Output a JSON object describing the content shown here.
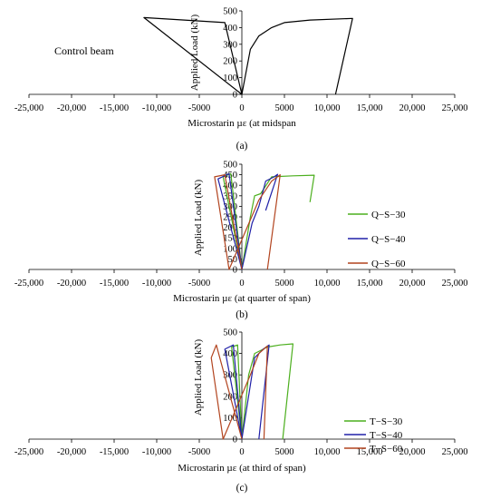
{
  "chart_data": [
    {
      "type": "line",
      "panel": "(a)",
      "annotation": "Control beam",
      "xlabel": "Microstarin µε (at midspan",
      "ylabel": "Applied Load (kN)",
      "xlim": [
        -25000,
        25000
      ],
      "ylim": [
        0,
        500
      ],
      "x_ticks": [
        "-25,000",
        "-20,000",
        "-15,000",
        "-10,000",
        "-5000",
        "0",
        "5000",
        "10,000",
        "15,000",
        "20,000",
        "25,000"
      ],
      "y_ticks": [
        "0",
        "100",
        "200",
        "300",
        "400",
        "500"
      ],
      "legend": "none",
      "series": [
        {
          "color": "#000000",
          "points": [
            [
              0,
              0
            ],
            [
              -11500,
              460
            ],
            [
              -2000,
              430
            ],
            [
              0,
              0
            ],
            [
              1000,
              270
            ],
            [
              2000,
              350
            ],
            [
              3500,
              400
            ],
            [
              5000,
              430
            ],
            [
              8000,
              445
            ],
            [
              13000,
              455
            ],
            [
              11000,
              0
            ]
          ]
        }
      ]
    },
    {
      "type": "line",
      "panel": "(b)",
      "xlabel": "Microstarin µε (at quarter of span)",
      "ylabel": "Applied Load (kN)",
      "xlim": [
        -25000,
        25000
      ],
      "ylim": [
        0,
        500
      ],
      "x_ticks": [
        "-25,000",
        "-20,000",
        "-15,000",
        "-10,000",
        "-5000",
        "0",
        "5000",
        "10,000",
        "15,000",
        "20,000",
        "25,000"
      ],
      "y_ticks": [
        "0",
        "50",
        "100",
        "150",
        "200",
        "250",
        "300",
        "350",
        "400",
        "450",
        "500"
      ],
      "legend": "right",
      "series": [
        {
          "name": "Q−S−30",
          "color": "#4CAF1E",
          "points": [
            [
              0,
              0
            ],
            [
              -1300,
              455
            ],
            [
              -2200,
              440
            ],
            [
              0,
              0
            ],
            [
              1000,
              250
            ],
            [
              1500,
              350
            ],
            [
              2200,
              360
            ],
            [
              3500,
              440
            ],
            [
              6000,
              445
            ],
            [
              8500,
              448
            ],
            [
              8000,
              320
            ]
          ]
        },
        {
          "name": "Q−S−40",
          "color": "#2020A8",
          "points": [
            [
              0,
              0
            ],
            [
              -1500,
              455
            ],
            [
              -2800,
              430
            ],
            [
              0,
              0
            ],
            [
              1200,
              220
            ],
            [
              2000,
              300
            ],
            [
              2800,
              420
            ],
            [
              3800,
              440
            ],
            [
              4200,
              452
            ],
            [
              2800,
              280
            ]
          ]
        },
        {
          "name": "Q−S−60",
          "color": "#B2441F",
          "points": [
            [
              0,
              0
            ],
            [
              -2000,
              450
            ],
            [
              -3200,
              440
            ],
            [
              -1500,
              0
            ],
            [
              2000,
              330
            ],
            [
              3500,
              420
            ],
            [
              4500,
              450
            ],
            [
              3000,
              0
            ]
          ]
        }
      ]
    },
    {
      "type": "line",
      "panel": "(c)",
      "xlabel": "Microstarin µε (at third of span)",
      "ylabel": "Applied Load (kN)",
      "xlim": [
        -25000,
        25000
      ],
      "ylim": [
        0,
        500
      ],
      "x_ticks": [
        "-25,000",
        "-20,000",
        "-15,000",
        "-10,000",
        "-5000",
        "0",
        "5000",
        "10,000",
        "15,000",
        "20,000",
        "25,000"
      ],
      "y_ticks": [
        "0",
        "100",
        "200",
        "300",
        "400",
        "500"
      ],
      "legend": "right",
      "series": [
        {
          "name": "T−S−30",
          "color": "#4CAF1E",
          "points": [
            [
              0,
              0
            ],
            [
              -500,
              440
            ],
            [
              -1200,
              430
            ],
            [
              0,
              0
            ],
            [
              800,
              300
            ],
            [
              1500,
              400
            ],
            [
              3000,
              430
            ],
            [
              4500,
              440
            ],
            [
              6000,
              445
            ],
            [
              4800,
              0
            ]
          ]
        },
        {
          "name": "T−S−40",
          "color": "#2020A8",
          "points": [
            [
              0,
              0
            ],
            [
              -1000,
              440
            ],
            [
              -2000,
              420
            ],
            [
              0,
              0
            ],
            [
              1500,
              380
            ],
            [
              2500,
              420
            ],
            [
              3200,
              440
            ],
            [
              2000,
              0
            ]
          ]
        },
        {
          "name": "T−S−60",
          "color": "#B2441F",
          "points": [
            [
              0,
              0
            ],
            [
              -3000,
              440
            ],
            [
              -3600,
              380
            ],
            [
              -2200,
              0
            ],
            [
              1000,
              300
            ],
            [
              2000,
              400
            ],
            [
              3000,
              435
            ],
            [
              2600,
              0
            ]
          ]
        }
      ]
    }
  ]
}
